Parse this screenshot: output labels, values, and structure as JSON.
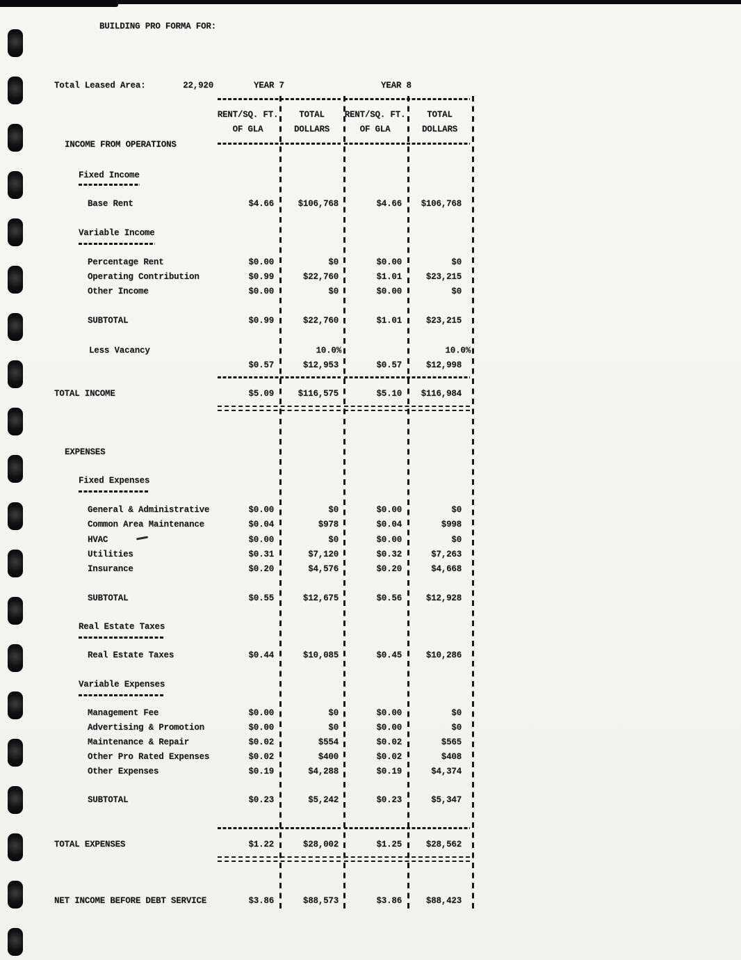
{
  "colors": {
    "paper": "#f5f5f1",
    "ink": "#171717",
    "edge_bar": "#0b0b0b"
  },
  "header": {
    "title": "BUILDING PRO FORMA FOR:",
    "total_leased_area_label": "Total Leased Area:",
    "total_leased_area_value": "22,920"
  },
  "columns": {
    "year7": "YEAR 7",
    "year8": "YEAR 8",
    "rate_line1": "RENT/SQ. FT.",
    "rate_line2": "OF GLA",
    "total_line1": "TOTAL",
    "total_line2": "DOLLARS"
  },
  "income": {
    "section_heading": "INCOME FROM OPERATIONS",
    "fixed_heading": "Fixed Income",
    "base_rent": {
      "label": "Base Rent",
      "y7_rate": "$4.66",
      "y7_total": "$106,768",
      "y8_rate": "$4.66",
      "y8_total": "$106,768"
    },
    "variable_heading": "Variable Income",
    "percentage_rent": {
      "label": "Percentage Rent",
      "y7_rate": "$0.00",
      "y7_total": "$0",
      "y8_rate": "$0.00",
      "y8_total": "$0"
    },
    "operating_contribution": {
      "label": "Operating Contribution",
      "y7_rate": "$0.99",
      "y7_total": "$22,760",
      "y8_rate": "$1.01",
      "y8_total": "$23,215"
    },
    "other_income": {
      "label": "Other Income",
      "y7_rate": "$0.00",
      "y7_total": "$0",
      "y8_rate": "$0.00",
      "y8_total": "$0"
    },
    "subtotal": {
      "label": "SUBTOTAL",
      "y7_rate": "$0.99",
      "y7_total": "$22,760",
      "y8_rate": "$1.01",
      "y8_total": "$23,215"
    },
    "less_vacancy": {
      "label": "Less Vacancy",
      "y7_pct": "10.0%",
      "y8_pct": "10.0%",
      "y7_rate": "$0.57",
      "y7_total": "$12,953",
      "y8_rate": "$0.57",
      "y8_total": "$12,998"
    },
    "total": {
      "label": "TOTAL INCOME",
      "y7_rate": "$5.09",
      "y7_total": "$116,575",
      "y8_rate": "$5.10",
      "y8_total": "$116,984"
    }
  },
  "expenses": {
    "section_heading": "EXPENSES",
    "fixed_heading": "Fixed Expenses",
    "general_admin": {
      "label": "General & Administrative",
      "y7_rate": "$0.00",
      "y7_total": "$0",
      "y8_rate": "$0.00",
      "y8_total": "$0"
    },
    "common_area": {
      "label": "Common Area Maintenance",
      "y7_rate": "$0.04",
      "y7_total": "$978",
      "y8_rate": "$0.04",
      "y8_total": "$998"
    },
    "hvac": {
      "label": "HVAC",
      "y7_rate": "$0.00",
      "y7_total": "$0",
      "y8_rate": "$0.00",
      "y8_total": "$0"
    },
    "utilities": {
      "label": "Utilities",
      "y7_rate": "$0.31",
      "y7_total": "$7,120",
      "y8_rate": "$0.32",
      "y8_total": "$7,263"
    },
    "insurance": {
      "label": "Insurance",
      "y7_rate": "$0.20",
      "y7_total": "$4,576",
      "y8_rate": "$0.20",
      "y8_total": "$4,668"
    },
    "fixed_subtotal": {
      "label": "SUBTOTAL",
      "y7_rate": "$0.55",
      "y7_total": "$12,675",
      "y8_rate": "$0.56",
      "y8_total": "$12,928"
    },
    "taxes_heading": "Real Estate Taxes",
    "real_estate_taxes": {
      "label": "Real Estate Taxes",
      "y7_rate": "$0.44",
      "y7_total": "$10,085",
      "y8_rate": "$0.45",
      "y8_total": "$10,286"
    },
    "variable_heading": "Variable Expenses",
    "management_fee": {
      "label": "Management Fee",
      "y7_rate": "$0.00",
      "y7_total": "$0",
      "y8_rate": "$0.00",
      "y8_total": "$0"
    },
    "advertising": {
      "label": "Advertising & Promotion",
      "y7_rate": "$0.00",
      "y7_total": "$0",
      "y8_rate": "$0.00",
      "y8_total": "$0"
    },
    "maintenance_repair": {
      "label": "Maintenance & Repair",
      "y7_rate": "$0.02",
      "y7_total": "$554",
      "y8_rate": "$0.02",
      "y8_total": "$565"
    },
    "other_pro_rated": {
      "label": "Other Pro Rated Expenses",
      "y7_rate": "$0.02",
      "y7_total": "$400",
      "y8_rate": "$0.02",
      "y8_total": "$408"
    },
    "other_expenses": {
      "label": "Other Expenses",
      "y7_rate": "$0.19",
      "y7_total": "$4,288",
      "y8_rate": "$0.19",
      "y8_total": "$4,374"
    },
    "variable_subtotal": {
      "label": "SUBTOTAL",
      "y7_rate": "$0.23",
      "y7_total": "$5,242",
      "y8_rate": "$0.23",
      "y8_total": "$5,347"
    },
    "total": {
      "label": "TOTAL EXPENSES",
      "y7_rate": "$1.22",
      "y7_total": "$28,002",
      "y8_rate": "$1.25",
      "y8_total": "$28,562"
    }
  },
  "net_income": {
    "label": "NET INCOME BEFORE DEBT SERVICE",
    "y7_rate": "$3.86",
    "y7_total": "$88,573",
    "y8_rate": "$3.86",
    "y8_total": "$88,423"
  }
}
